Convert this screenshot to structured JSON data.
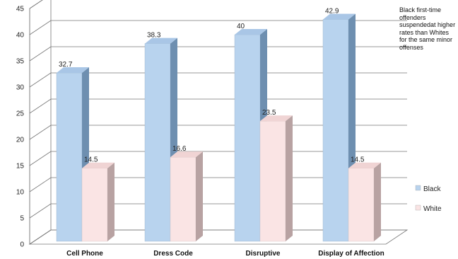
{
  "chart_data": {
    "type": "bar",
    "categories": [
      "Cell Phone",
      "Dress Code",
      "Disruptive",
      "Display of Affection"
    ],
    "series": [
      {
        "name": "Black",
        "values": [
          32.7,
          38.3,
          40,
          42.9
        ],
        "color": "#b8d3ee"
      },
      {
        "name": "White",
        "values": [
          14.5,
          16.6,
          23.5,
          14.5
        ],
        "color": "#fae4e4"
      }
    ],
    "data_labels": {
      "Black": [
        "32.7",
        "38.3",
        "40",
        "42.9"
      ],
      "White": [
        "14.5",
        "16.6",
        "23.5",
        "14.5"
      ]
    },
    "y_ticks": [
      "0",
      "5",
      "10",
      "15",
      "20",
      "25",
      "30",
      "35",
      "40",
      "45"
    ],
    "ylim": [
      0,
      45
    ],
    "grid": true,
    "style": "3d-clustered-column",
    "legend_position": "right",
    "annotation": "Black first-time offenders suspendedat higher rates than Whites for the same minor offenses"
  }
}
